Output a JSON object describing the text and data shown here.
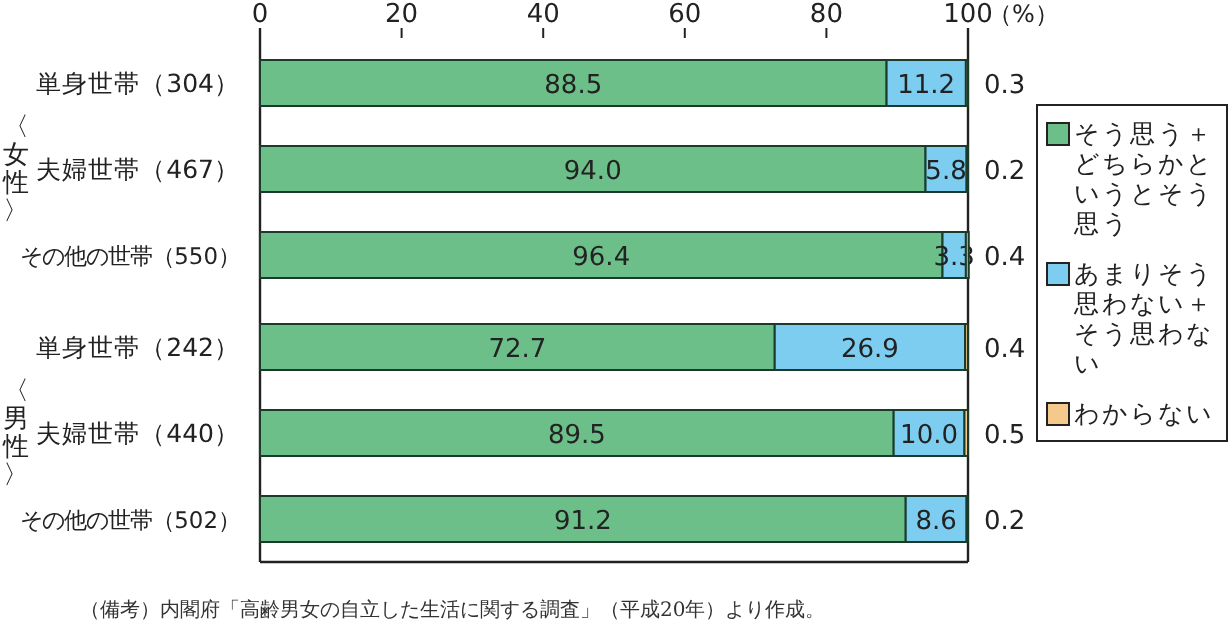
{
  "chart_data": {
    "type": "bar",
    "orientation": "horizontal",
    "stacked": true,
    "xlabel": "（%）",
    "categories": [
      "単身世帯（304）",
      "夫婦世帯（467）",
      "その他の世帯（550）",
      "単身世帯（242）",
      "夫婦世帯（440）",
      "その他の世帯（502）"
    ],
    "series": [
      {
        "name": "そう思う＋どちらかというとそう思う",
        "color": "#6dbf8a",
        "values": [
          88.5,
          94.0,
          96.4,
          72.7,
          89.5,
          91.2
        ],
        "value_labels": [
          "88.5",
          "94.0",
          "96.4",
          "72.7",
          "89.5",
          "91.2"
        ]
      },
      {
        "name": "あまりそう思わない＋そう思わない",
        "color": "#7ccdf0",
        "values": [
          11.2,
          5.8,
          3.3,
          26.9,
          10.0,
          8.6
        ],
        "value_labels": [
          "11.2",
          "5.8",
          "3.3",
          "26.9",
          "10.0",
          "8.6"
        ]
      },
      {
        "name": "わからない",
        "color": "#f5c98c",
        "values": [
          0.3,
          0.2,
          0.4,
          0.4,
          0.5,
          0.2
        ],
        "value_labels": [
          "0.3",
          "0.2",
          "0.4",
          "0.4",
          "0.5",
          "0.2"
        ]
      }
    ],
    "xlim": [
      0,
      100
    ],
    "xticks": [
      0,
      20,
      40,
      60,
      80,
      100
    ],
    "grid": false,
    "legend": "right",
    "annotations": [
      "〈女性〉",
      "〈男性〉",
      "（備考）内閣府「高齢男女の自立した生活に関する調査」（平成20年）より作成。"
    ]
  }
}
